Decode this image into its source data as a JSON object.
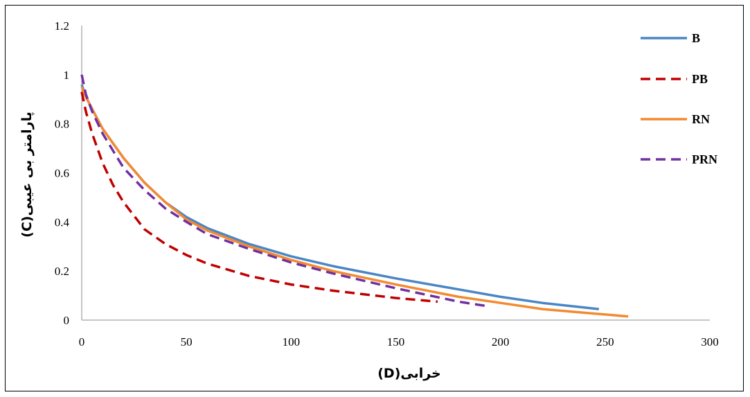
{
  "chart_data": {
    "type": "line",
    "xlabel": "خرابی(D)",
    "ylabel": "پارامتر بی عیبی(C)",
    "xlim": [
      0,
      300
    ],
    "ylim": [
      0,
      1.2
    ],
    "xticks": [
      "0",
      "50",
      "100",
      "150",
      "200",
      "250",
      "300"
    ],
    "yticks": [
      "0",
      "0.2",
      "0.4",
      "0.6",
      "0.8",
      "1",
      "1.2"
    ],
    "grid": false,
    "legend_position": "top-right",
    "series": [
      {
        "name": "B",
        "color": "#4A86C5",
        "dash": "solid",
        "x": [
          0,
          2,
          5,
          10,
          15,
          20,
          30,
          40,
          50,
          60,
          80,
          100,
          120,
          150,
          180,
          200,
          220,
          247
        ],
        "y": [
          0.96,
          0.91,
          0.86,
          0.78,
          0.72,
          0.66,
          0.56,
          0.48,
          0.42,
          0.375,
          0.31,
          0.26,
          0.22,
          0.17,
          0.125,
          0.095,
          0.07,
          0.045
        ]
      },
      {
        "name": "PB",
        "color": "#C00000",
        "dash": "dashed",
        "x": [
          0,
          2,
          5,
          10,
          15,
          20,
          30,
          40,
          50,
          60,
          80,
          100,
          120,
          150,
          170
        ],
        "y": [
          0.93,
          0.85,
          0.76,
          0.64,
          0.55,
          0.48,
          0.37,
          0.31,
          0.265,
          0.23,
          0.18,
          0.145,
          0.12,
          0.09,
          0.075
        ]
      },
      {
        "name": "RN",
        "color": "#F28A30",
        "dash": "solid",
        "x": [
          0,
          2,
          5,
          10,
          15,
          20,
          30,
          40,
          50,
          60,
          80,
          100,
          120,
          150,
          180,
          200,
          220,
          240,
          261
        ],
        "y": [
          0.95,
          0.91,
          0.86,
          0.78,
          0.72,
          0.66,
          0.56,
          0.48,
          0.41,
          0.365,
          0.3,
          0.245,
          0.2,
          0.145,
          0.095,
          0.07,
          0.045,
          0.03,
          0.015
        ]
      },
      {
        "name": "PRN",
        "color": "#7030A0",
        "dash": "dashed",
        "x": [
          0,
          2,
          5,
          10,
          15,
          20,
          30,
          40,
          50,
          60,
          80,
          100,
          120,
          150,
          180,
          195
        ],
        "y": [
          1.0,
          0.92,
          0.85,
          0.76,
          0.69,
          0.62,
          0.53,
          0.455,
          0.4,
          0.35,
          0.29,
          0.235,
          0.19,
          0.13,
          0.075,
          0.055
        ]
      }
    ]
  }
}
